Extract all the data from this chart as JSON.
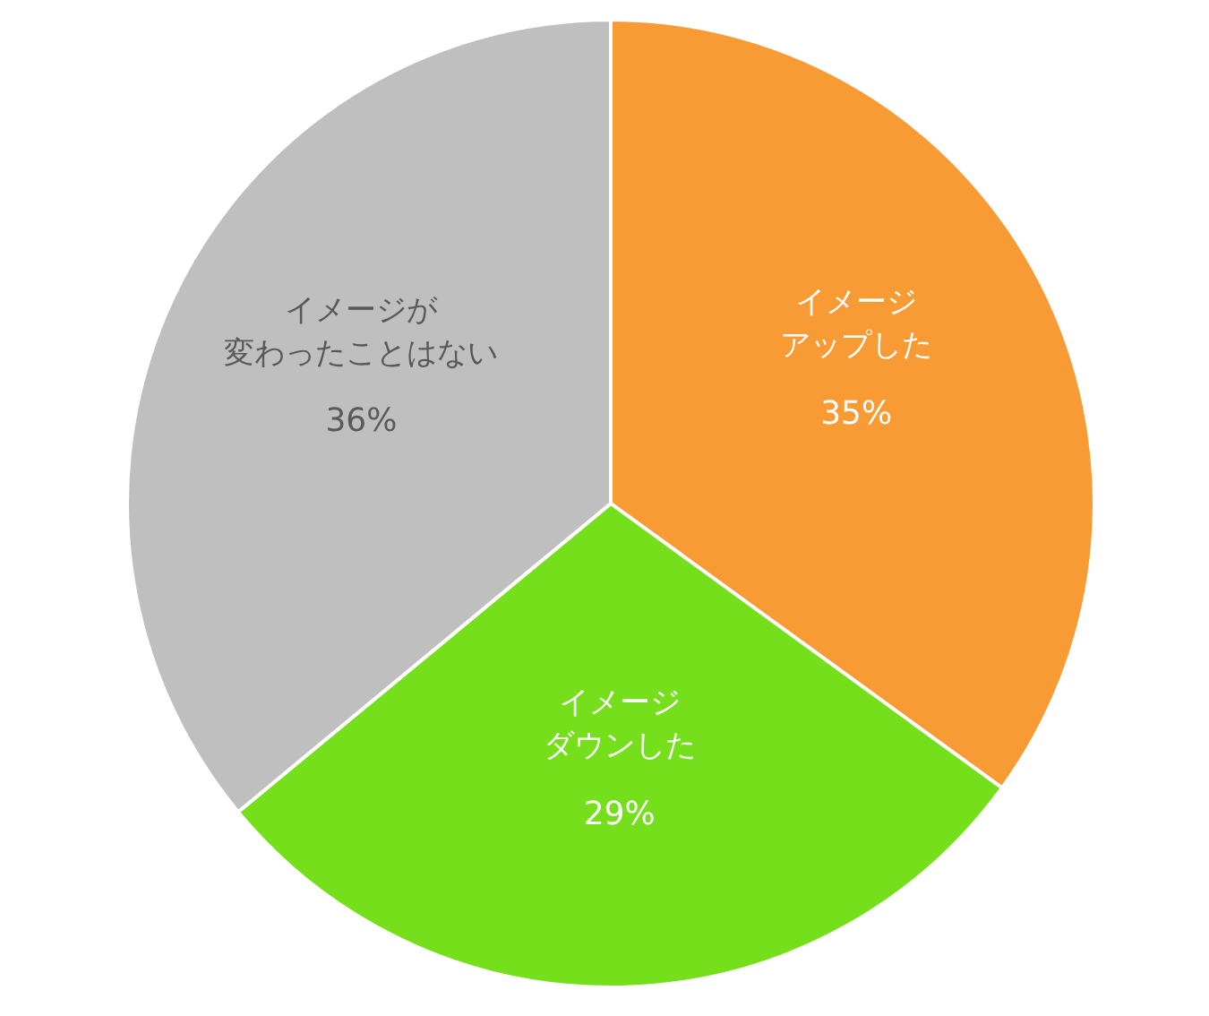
{
  "chart_data": {
    "type": "pie",
    "categories": [
      "イメージアップした",
      "イメージダウンした",
      "イメージが変わったことはない"
    ],
    "values": [
      35,
      29,
      36
    ],
    "value_labels": [
      "35%",
      "29%",
      "36%"
    ],
    "colors": [
      "#f99b35",
      "#74df1a",
      "#bfbfbf"
    ]
  }
}
